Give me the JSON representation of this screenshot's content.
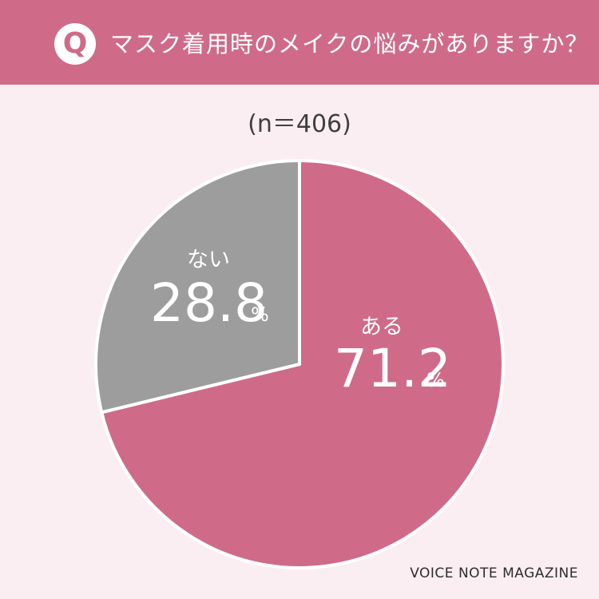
{
  "header": {
    "badge": "Q",
    "question": "マスク着用時のメイクの悩みがありますか？"
  },
  "sample_size": "(n＝406)",
  "colors": {
    "accent": "#cf6b89",
    "background": "#fbeef2",
    "secondary": "#9d9d9d",
    "label_text": "#ffffff"
  },
  "chart_data": {
    "type": "pie",
    "title": "マスク着用時のメイクの悩みがありますか？",
    "subtitle": "(n＝406)",
    "slices": [
      {
        "label": "ある",
        "value": 71.2,
        "display": "71.2",
        "unit": "%",
        "color": "#cf6b89"
      },
      {
        "label": "ない",
        "value": 28.8,
        "display": "28.8",
        "unit": "%",
        "color": "#9d9d9d"
      }
    ],
    "start_angle": "12 o'clock",
    "direction": "clockwise",
    "legend": "none (labels inside slices)"
  },
  "footer": {
    "brand": "VOICE NOTE MAGAZINE"
  }
}
